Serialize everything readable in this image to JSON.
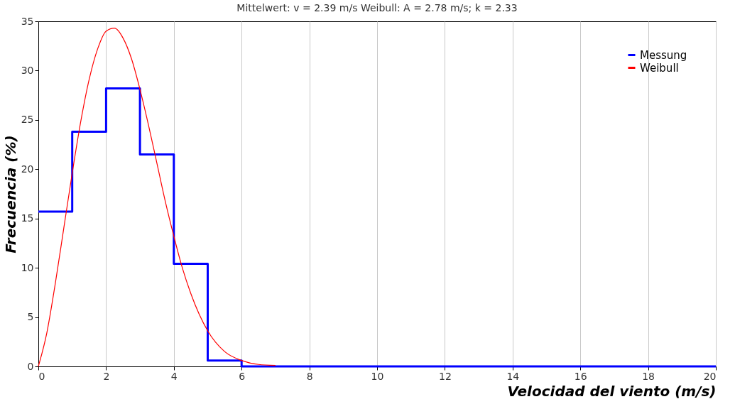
{
  "chart_data": {
    "type": "line",
    "title": "Mittelwert: v = 2.39 m/s    Weibull: A = 2.78 m/s; k = 2.33",
    "xlabel": "Velocidad del viento (m/s)",
    "ylabel": "Frecuencia (%)",
    "xlim": [
      0,
      20
    ],
    "ylim": [
      0,
      35
    ],
    "xticks": [
      0,
      2,
      4,
      6,
      8,
      10,
      12,
      14,
      16,
      18,
      20
    ],
    "yticks": [
      0,
      5,
      10,
      15,
      20,
      25,
      30,
      35
    ],
    "grid": "x",
    "legend": "top right",
    "series": [
      {
        "name": "Messung",
        "color": "#0000ff",
        "type": "step",
        "x": [
          0,
          1,
          2,
          3,
          4,
          5,
          6,
          7,
          8,
          9,
          10,
          11,
          12,
          13,
          14,
          15,
          16,
          17,
          18,
          19,
          20
        ],
        "values": [
          15.7,
          23.8,
          28.2,
          21.5,
          10.4,
          0.6,
          0,
          0,
          0,
          0,
          0,
          0,
          0,
          0,
          0,
          0,
          0,
          0,
          0,
          0,
          0
        ]
      },
      {
        "name": "Weibull",
        "color": "#ff0000",
        "x": [
          0,
          0.25,
          0.5,
          0.75,
          1,
          1.25,
          1.5,
          1.75,
          2,
          2.25,
          2.5,
          2.75,
          3,
          3.25,
          3.5,
          3.75,
          4,
          4.25,
          4.5,
          5,
          5.5,
          6,
          6.5,
          7
        ],
        "values": [
          0,
          3.4,
          8.4,
          14.0,
          19.6,
          24.8,
          29.1,
          32.2,
          34.0,
          34.3,
          33.3,
          31.2,
          28.1,
          24.5,
          20.6,
          16.7,
          13.2,
          10.0,
          7.4,
          3.6,
          1.5,
          0.6,
          0.2,
          0.1
        ]
      }
    ]
  }
}
